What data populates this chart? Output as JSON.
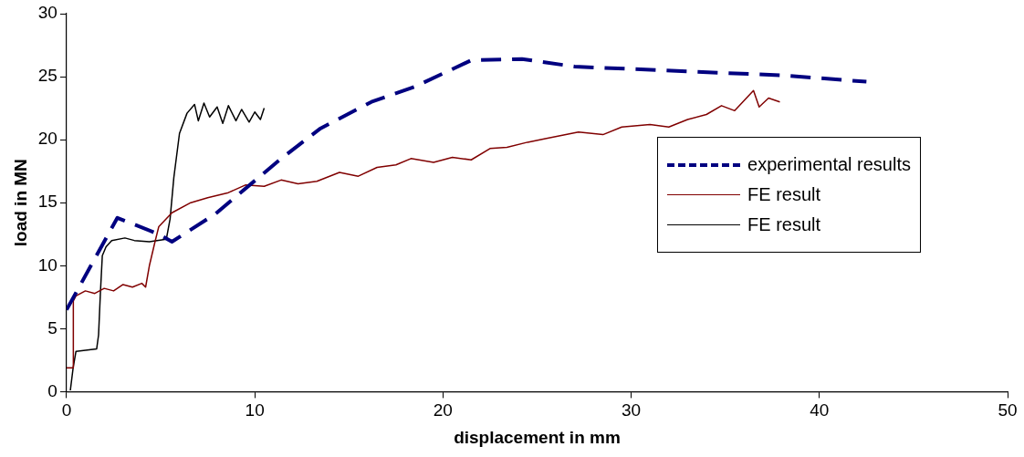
{
  "chart_data": {
    "type": "line",
    "xlabel": "displacement in mm",
    "ylabel": "load in MN",
    "xlim": [
      0,
      50
    ],
    "xticks": [
      0,
      10,
      20,
      30,
      40,
      50
    ],
    "ylim": [
      0,
      30
    ],
    "yticks": [
      0,
      5,
      10,
      15,
      20,
      25,
      30
    ],
    "legend": "right",
    "marker": "none",
    "series": [
      {
        "name": "experimental results",
        "color": "#000080",
        "line_style": "dashed",
        "x": [
          0,
          2.7,
          4.9,
          5.6,
          7.9,
          11.4,
          13.5,
          16.2,
          18.5,
          21.5,
          24.2,
          27.0,
          34.9,
          38.1,
          42.5
        ],
        "values": [
          6.5,
          13.8,
          12.5,
          11.9,
          14.1,
          18.5,
          20.9,
          23.0,
          24.2,
          26.3,
          26.4,
          25.8,
          25.3,
          25.1,
          24.6
        ]
      },
      {
        "name": "FE result",
        "color": "#800000",
        "line_style": "solid",
        "x": [
          0,
          0.35,
          0.36,
          0.5,
          1.0,
          1.5,
          2.0,
          2.5,
          3.0,
          3.5,
          4.0,
          4.2,
          4.4,
          4.7,
          4.9,
          5.6,
          6.6,
          7.5,
          8.6,
          9.5,
          10.5,
          11.4,
          12.3,
          13.3,
          14.5,
          15.5,
          16.5,
          17.5,
          18.3,
          19.5,
          20.5,
          21.5,
          22.5,
          23.4,
          24.5,
          25.5,
          27.2,
          28.5,
          29.5,
          31.0,
          32.0,
          33.0,
          34.0,
          34.8,
          35.5,
          36.5,
          36.8,
          37.3,
          37.9
        ],
        "values": [
          1.9,
          1.9,
          7.2,
          7.6,
          8.0,
          7.8,
          8.2,
          8.0,
          8.5,
          8.3,
          8.6,
          8.3,
          10.0,
          11.9,
          13.1,
          14.2,
          15.0,
          15.4,
          15.8,
          16.4,
          16.3,
          16.8,
          16.5,
          16.7,
          17.4,
          17.1,
          17.8,
          18.0,
          18.5,
          18.2,
          18.6,
          18.4,
          19.3,
          19.4,
          19.8,
          20.1,
          20.6,
          20.4,
          21.0,
          21.2,
          21.0,
          21.6,
          22.0,
          22.7,
          22.3,
          23.9,
          22.6,
          23.3,
          23.0
        ]
      },
      {
        "name": "FE result",
        "color": "#000000",
        "line_style": "solid",
        "x": [
          0.2,
          0.35,
          0.5,
          1.6,
          1.7,
          1.8,
          1.9,
          2.1,
          2.4,
          3.1,
          3.6,
          4.4,
          5.3,
          5.5,
          5.7,
          6.0,
          6.4,
          6.8,
          7.0,
          7.3,
          7.6,
          8.0,
          8.3,
          8.6,
          9.0,
          9.3,
          9.7,
          10.0,
          10.3,
          10.5
        ],
        "values": [
          0.1,
          1.9,
          3.2,
          3.4,
          4.5,
          7.9,
          10.8,
          11.5,
          12.0,
          12.2,
          12.0,
          11.9,
          12.1,
          13.7,
          17.0,
          20.5,
          22.1,
          22.8,
          21.5,
          22.9,
          21.8,
          22.6,
          21.3,
          22.7,
          21.5,
          22.4,
          21.4,
          22.2,
          21.6,
          22.5
        ]
      }
    ]
  }
}
